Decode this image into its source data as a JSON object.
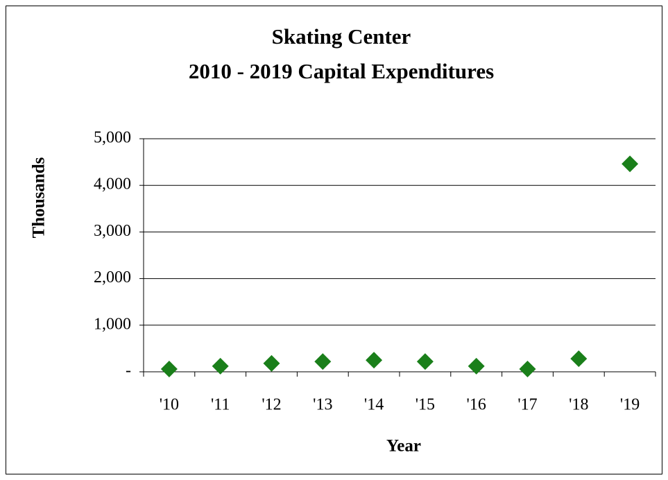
{
  "chart_data": {
    "type": "line",
    "title": "Skating Center",
    "subtitle": "2010 - 2019 Capital Expenditures",
    "x_label": "Year",
    "y_label": "Thousands",
    "categories": [
      "'10",
      "'11",
      "'12",
      "'13",
      "'14",
      "'15",
      "'16",
      "'17",
      "'18",
      "'19"
    ],
    "series": [
      {
        "name": "Capital Expenditures",
        "color": "#1a7f1a",
        "values": [
          60,
          120,
          180,
          220,
          250,
          220,
          120,
          60,
          280,
          4460
        ]
      }
    ],
    "ylim": [
      0,
      5000
    ],
    "yticks": [
      {
        "value": 0,
        "label": "-"
      },
      {
        "value": 1000,
        "label": "1,000"
      },
      {
        "value": 2000,
        "label": "2,000"
      },
      {
        "value": 3000,
        "label": "3,000"
      },
      {
        "value": 4000,
        "label": "4,000"
      },
      {
        "value": 5000,
        "label": "5,000"
      }
    ],
    "grid": true,
    "legend": false
  }
}
